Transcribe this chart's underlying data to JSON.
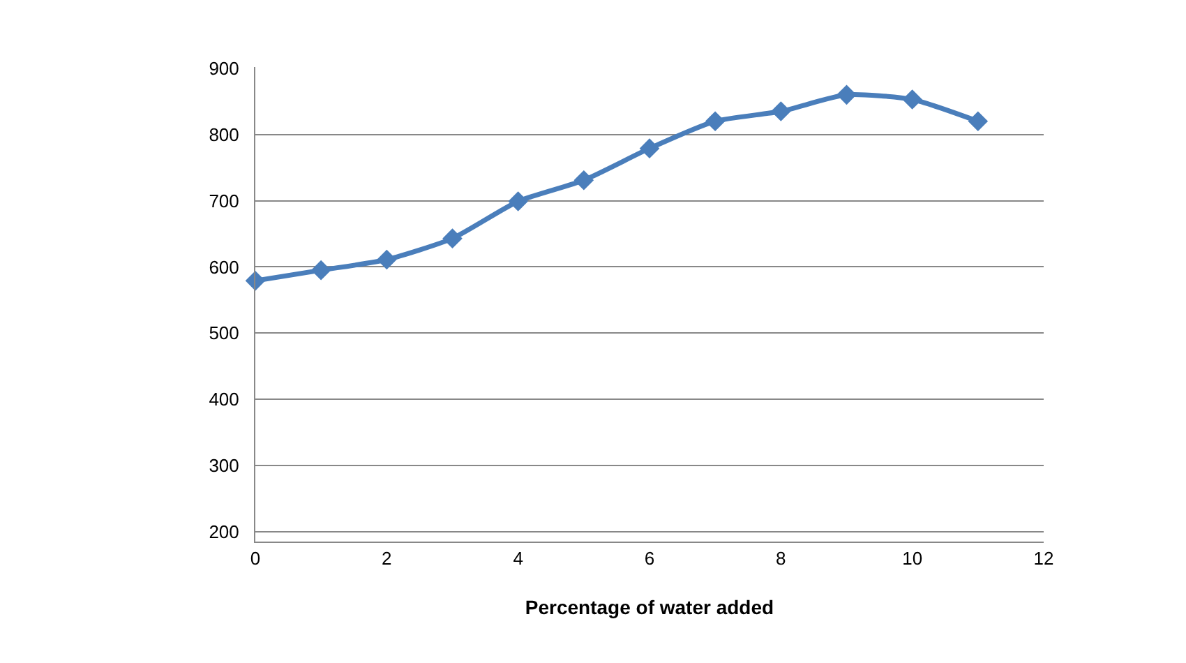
{
  "chart_data": {
    "type": "line",
    "xlabel": "Percentage of water added",
    "x": [
      0,
      1,
      2,
      3,
      4,
      5,
      6,
      7,
      8,
      9,
      10,
      11
    ],
    "series": [
      {
        "color": "#4a7ebb",
        "values": [
          579,
          595,
          611,
          643,
          699,
          731,
          779,
          820,
          835,
          860,
          853,
          820
        ]
      }
    ],
    "xlim": [
      0,
      12
    ],
    "xticks": [
      0,
      2,
      4,
      6,
      8,
      10,
      12
    ],
    "ylim": [
      185,
      902
    ],
    "yticks": [
      200,
      300,
      400,
      500,
      600,
      700,
      800,
      900
    ],
    "grid": "y",
    "marker": "diamond",
    "line_style": "solid"
  }
}
